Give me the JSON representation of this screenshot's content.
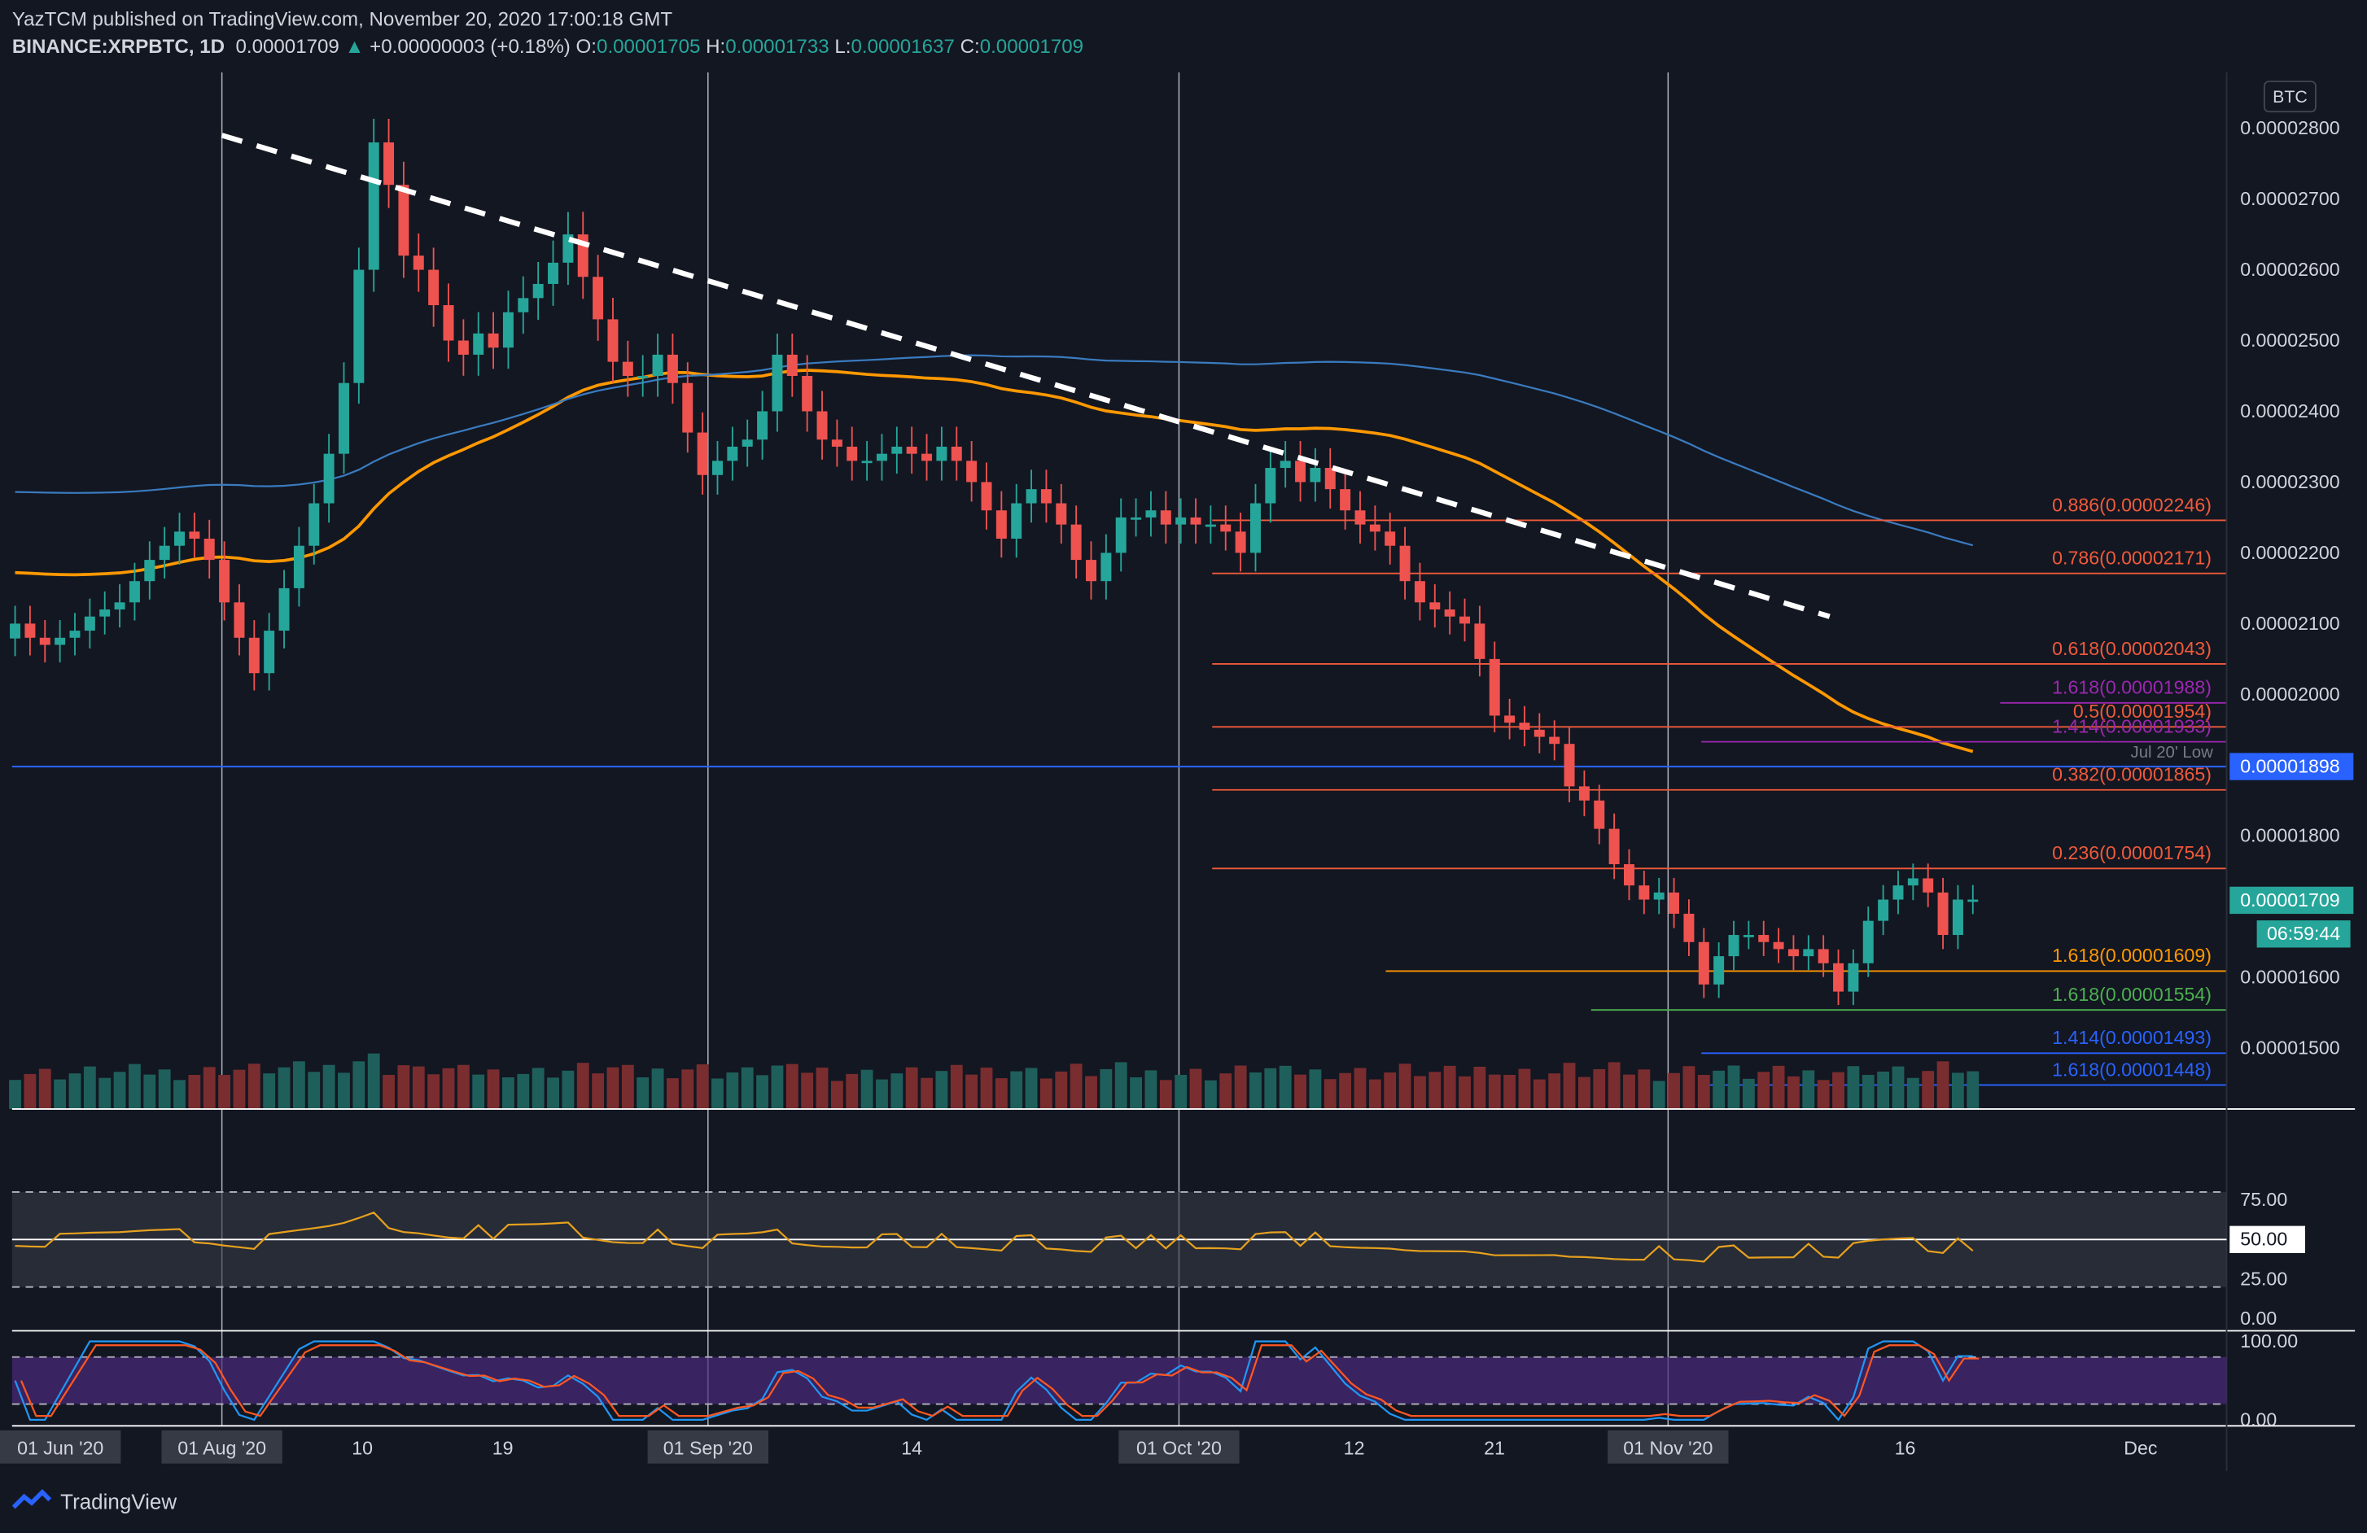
{
  "header": {
    "line1": "YazTCM published on TradingView.com, November 20, 2020 17:00:18 GMT",
    "symbol": "BINANCE:XRPBTC, 1D",
    "last": "0.00001709",
    "change": "+0.00000003 (+0.18%)",
    "o_label": "O:",
    "o": "0.00001705",
    "h_label": "H:",
    "h": "0.00001733",
    "l_label": "L:",
    "l": "0.00001637",
    "c_label": "C:",
    "c": "0.00001709"
  },
  "brand": "TradingView",
  "chart_data": {
    "type": "candlestick",
    "currency": "BTC",
    "price_ticks": [
      "0.00002800",
      "0.00002700",
      "0.00002600",
      "0.00002500",
      "0.00002400",
      "0.00002300",
      "0.00002200",
      "0.00002100",
      "0.00002000",
      "0.00001800",
      "0.00001600",
      "0.00001500"
    ],
    "time_labels": [
      {
        "label": "01 Jun '20",
        "boxed": true
      },
      {
        "label": "01 Aug '20",
        "boxed": true
      },
      {
        "label": "10",
        "boxed": false
      },
      {
        "label": "19",
        "boxed": false
      },
      {
        "label": "01 Sep '20",
        "boxed": true
      },
      {
        "label": "14",
        "boxed": false
      },
      {
        "label": "01 Oct '20",
        "boxed": true
      },
      {
        "label": "12",
        "boxed": false
      },
      {
        "label": "21",
        "boxed": false
      },
      {
        "label": "01 Nov '20",
        "boxed": true
      },
      {
        "label": "16",
        "boxed": false
      },
      {
        "label": "Dec",
        "boxed": false
      }
    ],
    "vertical_lines": [
      "01 Aug '20",
      "01 Sep '20",
      "01 Oct '20",
      "01 Nov '20"
    ],
    "price_tag": "0.00001709",
    "countdown": "06:59:44",
    "support_tag": "0.00001898",
    "support_label": "Jul 20' Low",
    "fib_levels": [
      {
        "label": "0.886(0.00002246)",
        "value": 2.246e-05,
        "color": "#f05a3a"
      },
      {
        "label": "0.786(0.00002171)",
        "value": 2.171e-05,
        "color": "#f05a3a"
      },
      {
        "label": "0.618(0.00002043)",
        "value": 2.043e-05,
        "color": "#f05a3a"
      },
      {
        "label": "1.618(0.00001988)",
        "value": 1.988e-05,
        "color": "#9c27b0"
      },
      {
        "label": "0.5(0.00001954)",
        "value": 1.954e-05,
        "color": "#f05a3a"
      },
      {
        "label": "1.414(0.00001933)",
        "value": 1.933e-05,
        "color": "#9c27b0"
      },
      {
        "label": "0.382(0.00001865)",
        "value": 1.865e-05,
        "color": "#f05a3a"
      },
      {
        "label": "0.236(0.00001754)",
        "value": 1.754e-05,
        "color": "#f05a3a"
      },
      {
        "label": "1.618(0.00001609)",
        "value": 1.609e-05,
        "color": "#ff9800"
      },
      {
        "label": "1.618(0.00001554)",
        "value": 1.554e-05,
        "color": "#4caf50"
      },
      {
        "label": "1.414(0.00001493)",
        "value": 1.493e-05,
        "color": "#2962ff"
      },
      {
        "label": "1.618(0.00001448)",
        "value": 1.448e-05,
        "color": "#2962ff"
      }
    ],
    "trendline": {
      "start": [
        2.8e-05,
        "01 Aug '20"
      ],
      "end": [
        2.11e-05,
        "Nov 14"
      ]
    },
    "rsi": {
      "levels": [
        "75.00",
        "50.00",
        "25.00",
        "0.00"
      ],
      "current": "50.00"
    },
    "stoch_rsi": {
      "levels": [
        "100.00",
        "0.00"
      ]
    },
    "closes": [
      2.1e-05,
      2.08e-05,
      2.07e-05,
      2.08e-05,
      2.09e-05,
      2.11e-05,
      2.12e-05,
      2.13e-05,
      2.16e-05,
      2.19e-05,
      2.21e-05,
      2.23e-05,
      2.22e-05,
      2.19e-05,
      2.13e-05,
      2.08e-05,
      2.03e-05,
      2.09e-05,
      2.15e-05,
      2.21e-05,
      2.27e-05,
      2.34e-05,
      2.44e-05,
      2.6e-05,
      2.78e-05,
      2.72e-05,
      2.62e-05,
      2.6e-05,
      2.55e-05,
      2.5e-05,
      2.48e-05,
      2.51e-05,
      2.49e-05,
      2.54e-05,
      2.56e-05,
      2.58e-05,
      2.61e-05,
      2.65e-05,
      2.59e-05,
      2.53e-05,
      2.47e-05,
      2.45e-05,
      2.45e-05,
      2.48e-05,
      2.44e-05,
      2.37e-05,
      2.31e-05,
      2.33e-05,
      2.35e-05,
      2.36e-05,
      2.4e-05,
      2.48e-05,
      2.45e-05,
      2.4e-05,
      2.36e-05,
      2.35e-05,
      2.33e-05,
      2.33e-05,
      2.34e-05,
      2.35e-05,
      2.34e-05,
      2.33e-05,
      2.35e-05,
      2.33e-05,
      2.3e-05,
      2.26e-05,
      2.22e-05,
      2.27e-05,
      2.29e-05,
      2.27e-05,
      2.24e-05,
      2.19e-05,
      2.16e-05,
      2.2e-05,
      2.25e-05,
      2.25e-05,
      2.26e-05,
      2.24e-05,
      2.25e-05,
      2.24e-05,
      2.24e-05,
      2.23e-05,
      2.2e-05,
      2.27e-05,
      2.32e-05,
      2.33e-05,
      2.3e-05,
      2.32e-05,
      2.29e-05,
      2.26e-05,
      2.24e-05,
      2.23e-05,
      2.21e-05,
      2.16e-05,
      2.13e-05,
      2.12e-05,
      2.11e-05,
      2.1e-05,
      2.05e-05,
      1.97e-05,
      1.96e-05,
      1.95e-05,
      1.94e-05,
      1.93e-05,
      1.87e-05,
      1.85e-05,
      1.81e-05,
      1.76e-05,
      1.73e-05,
      1.71e-05,
      1.72e-05,
      1.69e-05,
      1.65e-05,
      1.59e-05,
      1.63e-05,
      1.66e-05,
      1.66e-05,
      1.65e-05,
      1.64e-05,
      1.63e-05,
      1.64e-05,
      1.62e-05,
      1.58e-05,
      1.62e-05,
      1.68e-05,
      1.71e-05,
      1.73e-05,
      1.74e-05,
      1.72e-05,
      1.66e-05,
      1.71e-05,
      1.71e-05
    ]
  }
}
